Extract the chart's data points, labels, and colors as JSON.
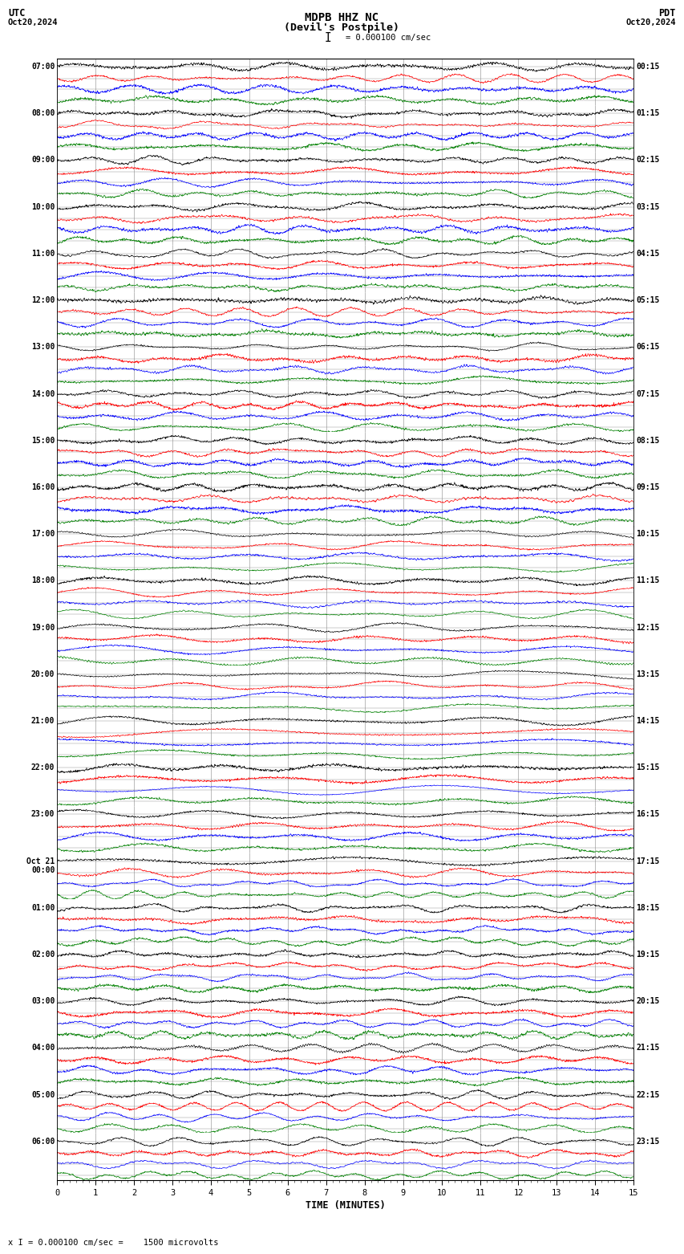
{
  "title_line1": "MDPB HHZ NC",
  "title_line2": "(Devil's Postpile)",
  "scale_label": "I = 0.000100 cm/sec",
  "utc_label": "UTC",
  "pdt_label": "PDT",
  "date_left": "Oct20,2024",
  "date_right": "Oct20,2024",
  "footer_label": "x I = 0.000100 cm/sec =    1500 microvolts",
  "xlabel": "TIME (MINUTES)",
  "left_times": [
    "07:00",
    "08:00",
    "09:00",
    "10:00",
    "11:00",
    "12:00",
    "13:00",
    "14:00",
    "15:00",
    "16:00",
    "17:00",
    "18:00",
    "19:00",
    "20:00",
    "21:00",
    "22:00",
    "23:00",
    "Oct 21\n00:00",
    "01:00",
    "02:00",
    "03:00",
    "04:00",
    "05:00",
    "06:00"
  ],
  "right_times": [
    "00:15",
    "01:15",
    "02:15",
    "03:15",
    "04:15",
    "05:15",
    "06:15",
    "07:15",
    "08:15",
    "09:15",
    "10:15",
    "11:15",
    "12:15",
    "13:15",
    "14:15",
    "15:15",
    "16:15",
    "17:15",
    "18:15",
    "19:15",
    "20:15",
    "21:15",
    "22:15",
    "23:15"
  ],
  "num_rows": 24,
  "xmin": 0,
  "xmax": 15,
  "colors": [
    "black",
    "red",
    "blue",
    "green"
  ],
  "bg_color": "white",
  "grid_color": "#888888",
  "title_fontsize": 10,
  "label_fontsize": 7.5,
  "tick_fontsize": 7,
  "fig_width": 8.5,
  "fig_height": 15.84,
  "dpi": 100
}
